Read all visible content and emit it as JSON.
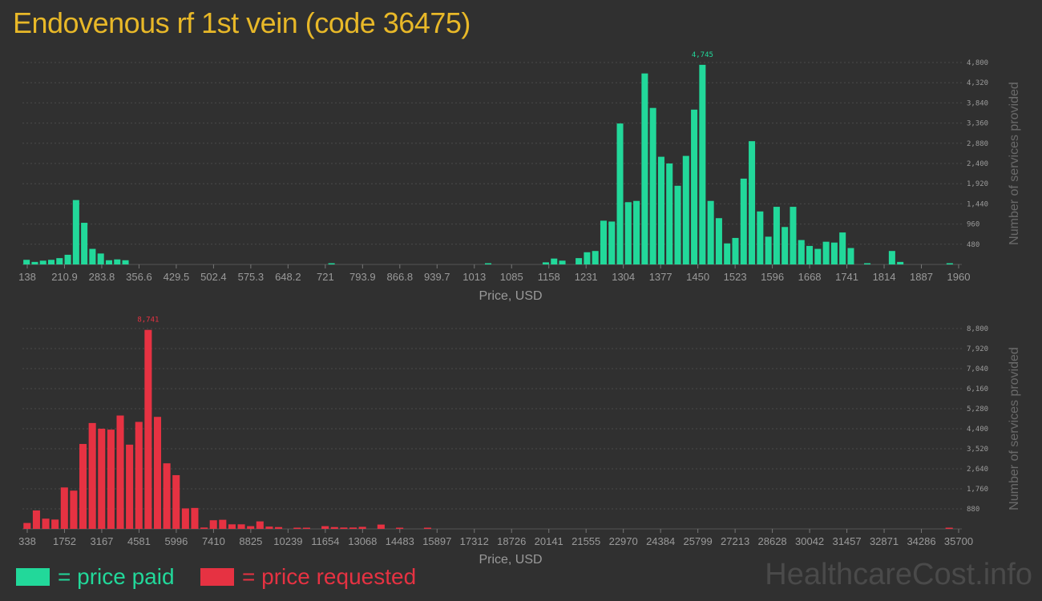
{
  "title": "Endovenous rf 1st vein (code 36475)",
  "legend": {
    "paid_label": "= price paid",
    "requested_label": "= price requested"
  },
  "watermark": "HealthcareCost.info",
  "colors": {
    "background": "#303030",
    "paid": "#22d89a",
    "requested": "#e63242",
    "title": "#e8b828",
    "axis_text": "#9a9a9a",
    "grid": "#4a4a4a"
  },
  "chart_data": [
    {
      "type": "bar",
      "series": [
        {
          "name": "price paid",
          "color": "#22d89a"
        }
      ],
      "xlabel": "Price, USD",
      "ylabel": "Number of services provided",
      "ylim": [
        0,
        4800
      ],
      "yticks": [
        480,
        960,
        1440,
        1920,
        2400,
        2880,
        3360,
        3840,
        4320,
        4800
      ],
      "ytick_labels": [
        "480",
        "960",
        "1,440",
        "1,920",
        "2,400",
        "2,880",
        "3,360",
        "3,840",
        "4,320",
        "4,800"
      ],
      "xtick_labels": [
        "138",
        "210.9",
        "283.8",
        "356.6",
        "429.5",
        "502.4",
        "575.3",
        "648.2",
        "721",
        "793.9",
        "866.8",
        "939.7",
        "1013",
        "1085",
        "1158",
        "1231",
        "1304",
        "1377",
        "1450",
        "1523",
        "1596",
        "1668",
        "1741",
        "1814",
        "1887",
        "1960"
      ],
      "max_annotation": "4,745",
      "values": [
        110,
        60,
        90,
        110,
        150,
        230,
        1530,
        990,
        370,
        260,
        100,
        120,
        100,
        0,
        0,
        0,
        0,
        0,
        0,
        0,
        0,
        0,
        0,
        0,
        0,
        0,
        0,
        0,
        0,
        0,
        0,
        0,
        0,
        0,
        0,
        0,
        0,
        20,
        0,
        0,
        0,
        0,
        0,
        0,
        0,
        0,
        0,
        0,
        0,
        0,
        0,
        0,
        0,
        0,
        0,
        0,
        10,
        0,
        0,
        0,
        0,
        0,
        0,
        50,
        140,
        90,
        0,
        150,
        290,
        320,
        1040,
        1020,
        3350,
        1480,
        1510,
        4540,
        3720,
        2560,
        2400,
        1870,
        2580,
        3680,
        4745,
        1510,
        1100,
        500,
        630,
        2040,
        2930,
        1260,
        660,
        1370,
        890,
        1370,
        580,
        440,
        370,
        540,
        520,
        760,
        390,
        0,
        10,
        0,
        0,
        320,
        60,
        0,
        0,
        0,
        0,
        0,
        10
      ]
    },
    {
      "type": "bar",
      "series": [
        {
          "name": "price requested",
          "color": "#e63242"
        }
      ],
      "xlabel": "Price, USD",
      "ylabel": "Number of services provided",
      "ylim": [
        0,
        8800
      ],
      "yticks": [
        880,
        1760,
        2640,
        3520,
        4400,
        5280,
        6160,
        7040,
        7920,
        8800
      ],
      "ytick_labels": [
        "880",
        "1,760",
        "2,640",
        "3,520",
        "4,400",
        "5,280",
        "6,160",
        "7,040",
        "7,920",
        "8,800"
      ],
      "xtick_labels": [
        "338",
        "1752",
        "3167",
        "4581",
        "5996",
        "7410",
        "8825",
        "10239",
        "11654",
        "13068",
        "14483",
        "15897",
        "17312",
        "18726",
        "20141",
        "21555",
        "22970",
        "24384",
        "25799",
        "27213",
        "28628",
        "30042",
        "31457",
        "32871",
        "34286",
        "35700"
      ],
      "max_annotation": "8,741",
      "values": [
        260,
        810,
        450,
        410,
        1820,
        1680,
        3730,
        4650,
        4400,
        4360,
        4980,
        3700,
        4700,
        8741,
        4920,
        2880,
        2360,
        900,
        920,
        60,
        380,
        400,
        200,
        200,
        120,
        330,
        100,
        80,
        0,
        50,
        50,
        0,
        120,
        80,
        60,
        60,
        90,
        0,
        190,
        0,
        40,
        0,
        0,
        40,
        0,
        0,
        0,
        0,
        0,
        0,
        0,
        0,
        0,
        0,
        0,
        0,
        0,
        0,
        0,
        0,
        0,
        0,
        0,
        0,
        0,
        0,
        0,
        0,
        0,
        0,
        0,
        0,
        0,
        0,
        0,
        0,
        0,
        0,
        0,
        0,
        0,
        0,
        0,
        0,
        0,
        0,
        0,
        0,
        0,
        0,
        0,
        0,
        0,
        0,
        0,
        0,
        0,
        0,
        0,
        40
      ]
    }
  ]
}
